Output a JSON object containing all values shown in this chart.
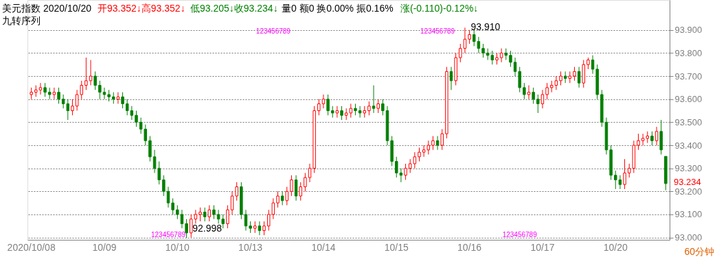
{
  "chart_data": {
    "type": "candlestick",
    "categories": [
      "2020/10/08",
      null,
      null,
      null,
      null,
      null,
      null,
      null,
      null,
      null,
      null,
      null,
      null,
      null,
      null,
      null,
      "10/09",
      null,
      null,
      null,
      null,
      null,
      null,
      null,
      null,
      null,
      null,
      null,
      null,
      null,
      null,
      null,
      "10/10",
      null,
      null,
      null,
      null,
      null,
      null,
      null,
      null,
      null,
      null,
      null,
      null,
      null,
      null,
      null,
      "10/13",
      null,
      null,
      null,
      null,
      null,
      null,
      null,
      null,
      null,
      null,
      null,
      null,
      null,
      null,
      null,
      "10/14",
      null,
      null,
      null,
      null,
      null,
      null,
      null,
      null,
      null,
      null,
      null,
      null,
      null,
      null,
      null,
      "10/15",
      null,
      null,
      null,
      null,
      null,
      null,
      null,
      null,
      null,
      null,
      null,
      null,
      null,
      null,
      null,
      "10/16",
      null,
      null,
      null,
      null,
      null,
      null,
      null,
      null,
      null,
      null,
      null,
      null,
      null,
      null,
      null,
      "10/17",
      null,
      null,
      null,
      null,
      null,
      null,
      null,
      null,
      null,
      null,
      null,
      null,
      null,
      null,
      null,
      "10/20",
      null,
      null,
      null,
      null,
      null,
      null,
      null,
      null,
      null,
      null,
      null
    ],
    "ohlc": [
      [
        93.62,
        93.65,
        93.6,
        93.63
      ],
      [
        93.63,
        93.66,
        93.61,
        93.64
      ],
      [
        93.64,
        93.67,
        93.62,
        93.65
      ],
      [
        93.65,
        93.67,
        93.61,
        93.63
      ],
      [
        93.63,
        93.65,
        93.6,
        93.62
      ],
      [
        93.62,
        93.65,
        93.6,
        93.63
      ],
      [
        93.63,
        93.65,
        93.58,
        93.6
      ],
      [
        93.6,
        93.62,
        93.56,
        93.58
      ],
      [
        93.58,
        93.6,
        93.51,
        93.55
      ],
      [
        93.55,
        93.6,
        93.53,
        93.57
      ],
      [
        93.57,
        93.64,
        93.55,
        93.62
      ],
      [
        93.62,
        93.68,
        93.6,
        93.66
      ],
      [
        93.66,
        93.78,
        93.64,
        93.68
      ],
      [
        93.68,
        93.77,
        93.66,
        93.7
      ],
      [
        93.7,
        93.72,
        93.64,
        93.66
      ],
      [
        93.66,
        93.68,
        93.6,
        93.63
      ],
      [
        93.63,
        93.65,
        93.6,
        93.62
      ],
      [
        93.62,
        93.64,
        93.59,
        93.61
      ],
      [
        93.61,
        93.63,
        93.58,
        93.6
      ],
      [
        93.6,
        93.63,
        93.58,
        93.61
      ],
      [
        93.61,
        93.63,
        93.56,
        93.58
      ],
      [
        93.58,
        93.6,
        93.53,
        93.55
      ],
      [
        93.55,
        93.57,
        93.51,
        93.53
      ],
      [
        93.53,
        93.55,
        93.48,
        93.5
      ],
      [
        93.5,
        93.52,
        93.45,
        93.47
      ],
      [
        93.47,
        93.49,
        93.4,
        93.42
      ],
      [
        93.42,
        93.44,
        93.33,
        93.35
      ],
      [
        93.35,
        93.38,
        93.28,
        93.3
      ],
      [
        93.3,
        93.33,
        93.23,
        93.25
      ],
      [
        93.25,
        93.27,
        93.18,
        93.2
      ],
      [
        93.2,
        93.22,
        93.13,
        93.15
      ],
      [
        93.15,
        93.17,
        93.1,
        93.12
      ],
      [
        93.12,
        93.14,
        93.08,
        93.1
      ],
      [
        93.1,
        93.12,
        93.04,
        93.06
      ],
      [
        93.06,
        93.08,
        92.998,
        93.02
      ],
      [
        93.02,
        93.1,
        93.0,
        93.08
      ],
      [
        93.08,
        93.12,
        93.06,
        93.1
      ],
      [
        93.1,
        93.13,
        93.07,
        93.11
      ],
      [
        93.11,
        93.13,
        93.07,
        93.09
      ],
      [
        93.09,
        93.14,
        93.07,
        93.12
      ],
      [
        93.12,
        93.14,
        93.08,
        93.1
      ],
      [
        93.1,
        93.12,
        93.06,
        93.08
      ],
      [
        93.08,
        93.1,
        93.04,
        93.06
      ],
      [
        93.06,
        93.14,
        93.04,
        93.12
      ],
      [
        93.12,
        93.2,
        93.1,
        93.18
      ],
      [
        93.18,
        93.24,
        93.16,
        93.22
      ],
      [
        93.22,
        93.24,
        93.08,
        93.1
      ],
      [
        93.1,
        93.12,
        93.03,
        93.05
      ],
      [
        93.05,
        93.07,
        93.02,
        93.04
      ],
      [
        93.04,
        93.07,
        93.02,
        93.05
      ],
      [
        93.05,
        93.07,
        93.01,
        93.03
      ],
      [
        93.03,
        93.07,
        93.01,
        93.05
      ],
      [
        93.05,
        93.12,
        93.03,
        93.1
      ],
      [
        93.1,
        93.17,
        93.08,
        93.15
      ],
      [
        93.15,
        93.2,
        93.13,
        93.18
      ],
      [
        93.18,
        93.2,
        93.14,
        93.16
      ],
      [
        93.16,
        93.22,
        93.14,
        93.2
      ],
      [
        93.2,
        93.27,
        93.18,
        93.25
      ],
      [
        93.25,
        93.27,
        93.16,
        93.18
      ],
      [
        93.18,
        93.24,
        93.16,
        93.22
      ],
      [
        93.22,
        93.28,
        93.2,
        93.26
      ],
      [
        93.26,
        93.32,
        93.24,
        93.3
      ],
      [
        93.3,
        93.57,
        93.28,
        93.55
      ],
      [
        93.55,
        93.6,
        93.53,
        93.58
      ],
      [
        93.58,
        93.62,
        93.56,
        93.6
      ],
      [
        93.6,
        93.62,
        93.53,
        93.55
      ],
      [
        93.55,
        93.57,
        93.52,
        93.54
      ],
      [
        93.54,
        93.57,
        93.52,
        93.55
      ],
      [
        93.55,
        93.57,
        93.51,
        93.53
      ],
      [
        93.53,
        93.56,
        93.51,
        93.54
      ],
      [
        93.54,
        93.58,
        93.52,
        93.56
      ],
      [
        93.56,
        93.58,
        93.53,
        93.55
      ],
      [
        93.55,
        93.57,
        93.52,
        93.54
      ],
      [
        93.54,
        93.57,
        93.52,
        93.55
      ],
      [
        93.55,
        93.59,
        93.53,
        93.57
      ],
      [
        93.57,
        93.66,
        93.54,
        93.56
      ],
      [
        93.56,
        93.6,
        93.54,
        93.58
      ],
      [
        93.58,
        93.6,
        93.53,
        93.55
      ],
      [
        93.55,
        93.57,
        93.4,
        93.42
      ],
      [
        93.42,
        93.44,
        93.31,
        93.33
      ],
      [
        93.33,
        93.35,
        93.26,
        93.28
      ],
      [
        93.28,
        93.3,
        93.24,
        93.27
      ],
      [
        93.27,
        93.32,
        93.25,
        93.3
      ],
      [
        93.3,
        93.34,
        93.28,
        93.32
      ],
      [
        93.32,
        93.37,
        93.3,
        93.35
      ],
      [
        93.35,
        93.39,
        93.33,
        93.37
      ],
      [
        93.37,
        93.4,
        93.35,
        93.38
      ],
      [
        93.38,
        93.42,
        93.36,
        93.4
      ],
      [
        93.4,
        93.44,
        93.38,
        93.42
      ],
      [
        93.42,
        93.44,
        93.38,
        93.4
      ],
      [
        93.4,
        93.47,
        93.38,
        93.45
      ],
      [
        93.45,
        93.74,
        93.43,
        93.72
      ],
      [
        93.72,
        93.74,
        93.64,
        93.68
      ],
      [
        93.68,
        93.8,
        93.66,
        93.78
      ],
      [
        93.78,
        93.84,
        93.76,
        93.82
      ],
      [
        93.82,
        93.91,
        93.8,
        93.86
      ],
      [
        93.86,
        93.9,
        93.84,
        93.88
      ],
      [
        93.88,
        93.9,
        93.83,
        93.85
      ],
      [
        93.85,
        93.87,
        93.8,
        93.82
      ],
      [
        93.82,
        93.84,
        93.78,
        93.8
      ],
      [
        93.8,
        93.82,
        93.77,
        93.79
      ],
      [
        93.79,
        93.81,
        93.75,
        93.77
      ],
      [
        93.77,
        93.8,
        93.75,
        93.78
      ],
      [
        93.78,
        93.82,
        93.76,
        93.8
      ],
      [
        93.8,
        93.82,
        93.77,
        93.79
      ],
      [
        93.79,
        93.81,
        93.74,
        93.76
      ],
      [
        93.76,
        93.78,
        93.7,
        93.72
      ],
      [
        93.72,
        93.74,
        93.63,
        93.65
      ],
      [
        93.65,
        93.67,
        93.6,
        93.62
      ],
      [
        93.62,
        93.66,
        93.6,
        93.63
      ],
      [
        93.63,
        93.65,
        93.58,
        93.6
      ],
      [
        93.6,
        93.62,
        93.54,
        93.58
      ],
      [
        93.58,
        93.64,
        93.56,
        93.62
      ],
      [
        93.62,
        93.67,
        93.6,
        93.65
      ],
      [
        93.65,
        93.68,
        93.63,
        93.66
      ],
      [
        93.66,
        93.7,
        93.64,
        93.68
      ],
      [
        93.68,
        93.72,
        93.66,
        93.7
      ],
      [
        93.7,
        93.72,
        93.67,
        93.69
      ],
      [
        93.69,
        93.72,
        93.67,
        93.7
      ],
      [
        93.7,
        93.74,
        93.68,
        93.72
      ],
      [
        93.72,
        93.74,
        93.65,
        93.67
      ],
      [
        93.67,
        93.77,
        93.65,
        93.75
      ],
      [
        93.75,
        93.78,
        93.73,
        93.77
      ],
      [
        93.77,
        93.79,
        93.71,
        93.73
      ],
      [
        93.73,
        93.75,
        93.6,
        93.62
      ],
      [
        93.62,
        93.64,
        93.48,
        93.5
      ],
      [
        93.5,
        93.52,
        93.36,
        93.38
      ],
      [
        93.38,
        93.4,
        93.25,
        93.27
      ],
      [
        93.27,
        93.29,
        93.21,
        93.25
      ],
      [
        93.25,
        93.27,
        93.21,
        93.23
      ],
      [
        93.23,
        93.34,
        93.21,
        93.28
      ],
      [
        93.28,
        93.32,
        93.26,
        93.3
      ],
      [
        93.3,
        93.42,
        93.28,
        93.4
      ],
      [
        93.4,
        93.45,
        93.38,
        93.42
      ],
      [
        93.42,
        93.45,
        93.4,
        93.43
      ],
      [
        93.43,
        93.46,
        93.41,
        93.44
      ],
      [
        93.44,
        93.46,
        93.4,
        93.42
      ],
      [
        93.42,
        93.48,
        93.4,
        93.46
      ],
      [
        93.46,
        93.51,
        93.36,
        93.38
      ],
      [
        93.352,
        93.352,
        93.205,
        93.234
      ]
    ],
    "ylim": [
      92.99,
      94.03
    ],
    "yticks": [
      {
        "value": 93.0,
        "label": "93.000"
      },
      {
        "value": 93.1,
        "label": "93.100"
      },
      {
        "value": 93.2,
        "label": "93.200"
      },
      {
        "value": 93.3,
        "label": "93.300"
      },
      {
        "value": 93.4,
        "label": "93.400"
      },
      {
        "value": 93.5,
        "label": "93.500"
      },
      {
        "value": 93.6,
        "label": "93.600"
      },
      {
        "value": 93.7,
        "label": "93.700"
      },
      {
        "value": 93.8,
        "label": "93.800"
      },
      {
        "value": 93.9,
        "label": "93.900"
      }
    ],
    "grid": "y",
    "annotations": [
      "美元指数 2020/10/20",
      "开93.352↓高93.352↓",
      "低93.205↓收93.234↓",
      "量0 额0 换0.00% 振0.16%",
      "涨(-0.110)-0.12%↓",
      "九转序列",
      "60分钟",
      "123456789",
      "123456789",
      "123456789",
      "123456789",
      "93.910",
      "92.998",
      "93.234"
    ]
  }
}
